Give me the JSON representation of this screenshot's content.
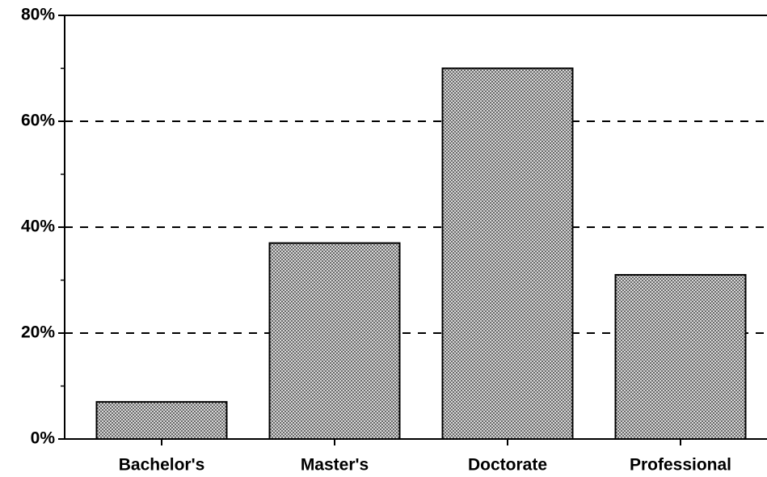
{
  "chart_data": {
    "type": "bar",
    "categories": [
      "Bachelor's",
      "Master's",
      "Doctorate",
      "Professional"
    ],
    "values": [
      7,
      37,
      70,
      31
    ],
    "color": "#a8a8a8",
    "ylim": [
      0,
      80
    ],
    "yticks": [
      {
        "value": 0,
        "label": "0%"
      },
      {
        "value": 20,
        "label": "20%"
      },
      {
        "value": 40,
        "label": "40%"
      },
      {
        "value": 60,
        "label": "60%"
      },
      {
        "value": 80,
        "label": "80%"
      }
    ],
    "minor_yticks": [
      10,
      30,
      50,
      70
    ],
    "grid": true
  }
}
